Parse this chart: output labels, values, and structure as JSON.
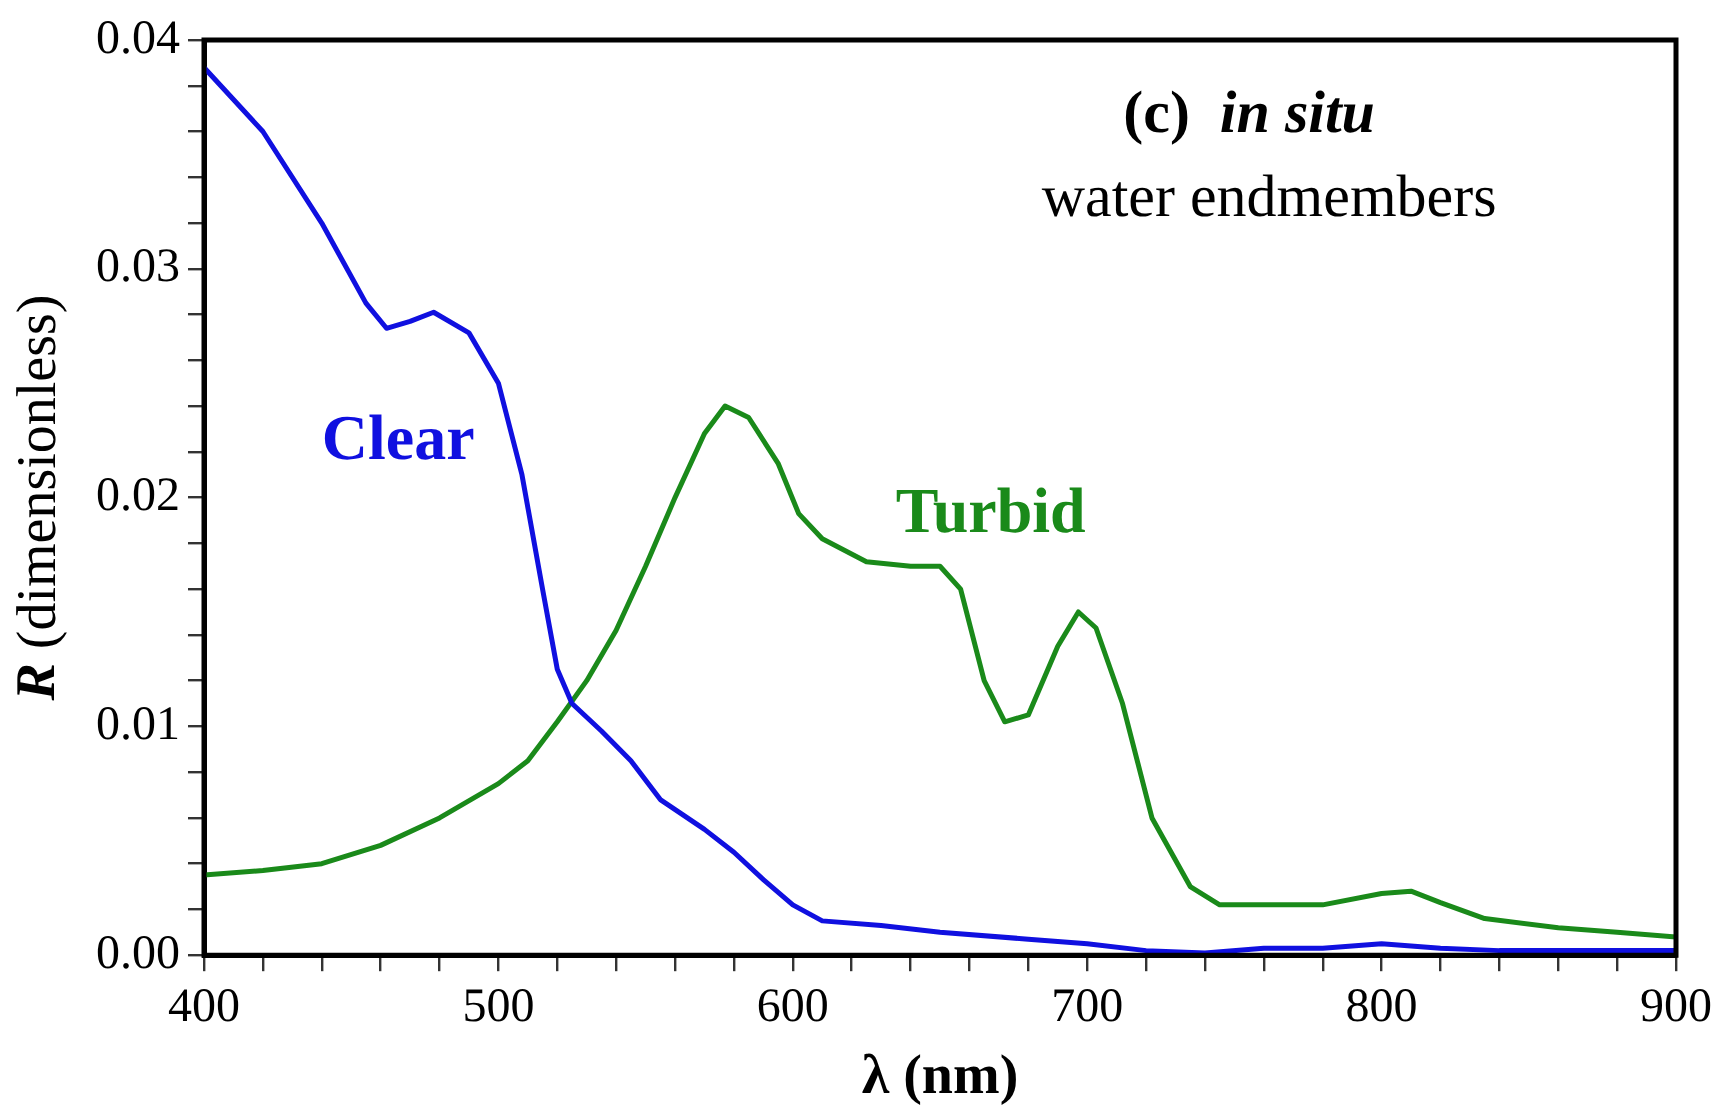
{
  "chart_data": {
    "type": "line",
    "xlabel": "λ (nm)",
    "ylabel": "R (dimensionless)",
    "annotations": [
      "(c)  in situ",
      "water endmembers"
    ],
    "xlim": [
      400,
      900
    ],
    "ylim": [
      0,
      0.04
    ],
    "xticks": [
      400,
      {
        "value": 420,
        "label": null
      },
      {
        "value": 440,
        "label": null
      },
      {
        "value": 460,
        "label": null
      },
      {
        "value": 480,
        "label": null
      },
      500,
      {
        "value": 520,
        "label": null
      },
      {
        "value": 540,
        "label": null
      },
      {
        "value": 560,
        "label": null
      },
      {
        "value": 580,
        "label": null
      },
      600,
      {
        "value": 620,
        "label": null
      },
      {
        "value": 640,
        "label": null
      },
      {
        "value": 660,
        "label": null
      },
      {
        "value": 680,
        "label": null
      },
      700,
      {
        "value": 720,
        "label": null
      },
      {
        "value": 740,
        "label": null
      },
      {
        "value": 760,
        "label": null
      },
      {
        "value": 780,
        "label": null
      },
      800,
      {
        "value": 820,
        "label": null
      },
      {
        "value": 840,
        "label": null
      },
      {
        "value": 860,
        "label": null
      },
      {
        "value": 880,
        "label": null
      },
      900
    ],
    "yticks": [
      {
        "value": 0,
        "label": "0.00"
      },
      {
        "value": 0.002,
        "label": null
      },
      {
        "value": 0.004,
        "label": null
      },
      {
        "value": 0.006,
        "label": null
      },
      {
        "value": 0.008,
        "label": null
      },
      {
        "value": 0.01,
        "label": "0.01"
      },
      {
        "value": 0.012,
        "label": null
      },
      {
        "value": 0.014,
        "label": null
      },
      {
        "value": 0.016,
        "label": null
      },
      {
        "value": 0.018,
        "label": null
      },
      {
        "value": 0.02,
        "label": "0.02"
      },
      {
        "value": 0.022,
        "label": null
      },
      {
        "value": 0.024,
        "label": null
      },
      {
        "value": 0.026,
        "label": null
      },
      {
        "value": 0.028,
        "label": null
      },
      {
        "value": 0.03,
        "label": "0.03"
      },
      {
        "value": 0.032,
        "label": null
      },
      {
        "value": 0.034,
        "label": null
      },
      {
        "value": 0.036,
        "label": null
      },
      {
        "value": 0.038,
        "label": null
      },
      {
        "value": 0.04,
        "label": "0.04"
      }
    ],
    "grid": false,
    "legend": false,
    "marker": "none",
    "line_style": "solid",
    "series": [
      {
        "name": "Clear",
        "color": "#1010e0",
        "x": [
          400,
          420,
          440,
          455,
          462,
          470,
          478,
          490,
          500,
          508,
          515,
          520,
          525,
          535,
          545,
          555,
          570,
          580,
          590,
          600,
          610,
          630,
          650,
          680,
          700,
          720,
          740,
          760,
          780,
          800,
          820,
          840,
          900
        ],
        "values": [
          0.0388,
          0.036,
          0.032,
          0.0285,
          0.0274,
          0.0277,
          0.0281,
          0.0272,
          0.025,
          0.021,
          0.016,
          0.0125,
          0.011,
          0.0098,
          0.0085,
          0.0068,
          0.0055,
          0.0045,
          0.0033,
          0.0022,
          0.0015,
          0.0013,
          0.001,
          0.0007,
          0.0005,
          0.0002,
          0.0001,
          0.0003,
          0.0003,
          0.0005,
          0.0003,
          0.0002,
          0.0002
        ]
      },
      {
        "name": "Turbid",
        "color": "#1a8a1a",
        "x": [
          400,
          420,
          440,
          460,
          480,
          500,
          510,
          520,
          530,
          540,
          550,
          560,
          570,
          577,
          585,
          595,
          602,
          610,
          625,
          640,
          650,
          657,
          665,
          672,
          680,
          690,
          697,
          703,
          712,
          722,
          735,
          745,
          760,
          780,
          800,
          810,
          820,
          835,
          860,
          880,
          900
        ],
        "values": [
          0.0035,
          0.0037,
          0.004,
          0.0048,
          0.006,
          0.0075,
          0.0085,
          0.0102,
          0.012,
          0.0142,
          0.017,
          0.02,
          0.0228,
          0.024,
          0.0235,
          0.0215,
          0.0193,
          0.0182,
          0.0172,
          0.017,
          0.017,
          0.016,
          0.012,
          0.0102,
          0.0105,
          0.0135,
          0.015,
          0.0143,
          0.011,
          0.006,
          0.003,
          0.0022,
          0.0022,
          0.0022,
          0.0027,
          0.0028,
          0.0023,
          0.0016,
          0.0012,
          0.001,
          0.0008
        ]
      }
    ]
  }
}
